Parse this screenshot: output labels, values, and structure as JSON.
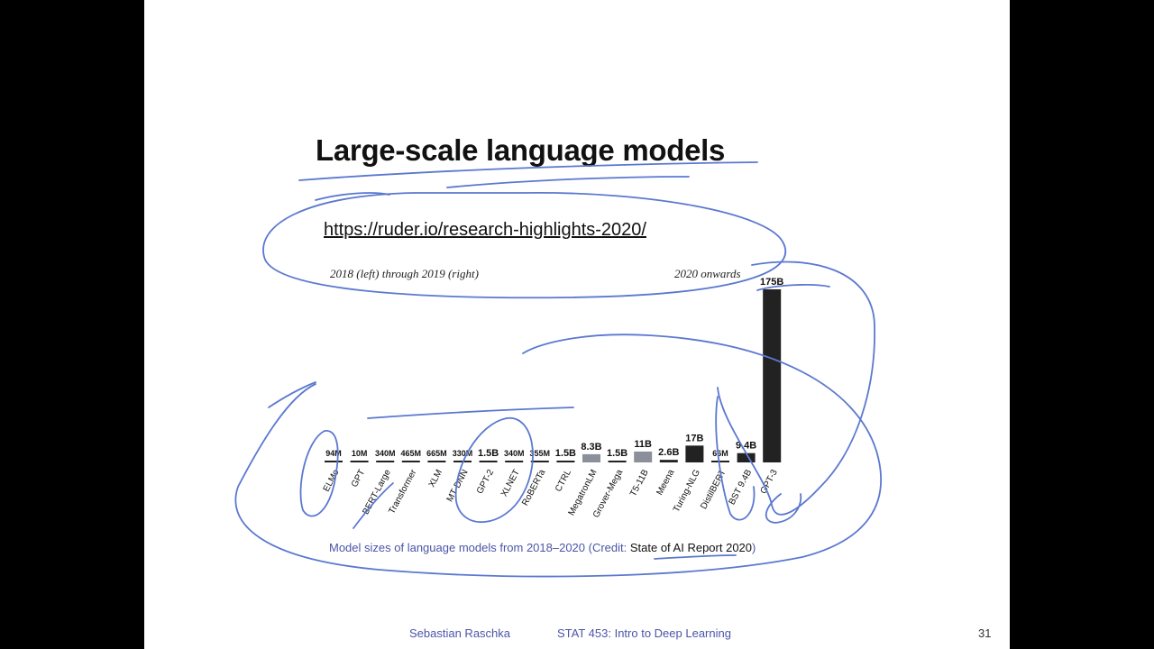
{
  "slide": {
    "title": "Large-scale language models",
    "link": "https://ruder.io/research-highlights-2020/",
    "note_left": "2018 (left) through 2019 (right)",
    "note_right": "2020 onwards",
    "caption_text": "Model sizes of language models from 2018–2020 (Credit: ",
    "caption_link": "State of AI Report 2020",
    "caption_end": ")",
    "footer_author": "Sebastian Raschka",
    "footer_course": "STAT 453: Intro to Deep Learning",
    "page_number": "31"
  },
  "colors": {
    "ink": "#5b78d0",
    "bar_dark": "#222222",
    "bar_gray": "#8a8f99",
    "text_blue": "#4a55a8"
  },
  "chart_data": {
    "type": "bar",
    "categories": [
      "ELMo",
      "GPT",
      "BERT-Large",
      "Transformer",
      "XLM",
      "MT-DNN",
      "GPT-2",
      "XLNET",
      "RoBERTa",
      "CTRL",
      "MegatronLM",
      "Grover-Mega",
      "T5-11B",
      "Meena",
      "Turing-NLG",
      "DistilBERT",
      "BST 9.4B",
      "GPT-3"
    ],
    "values_billions": [
      0.094,
      0.01,
      0.34,
      0.465,
      0.665,
      0.33,
      1.5,
      0.34,
      0.355,
      1.5,
      8.3,
      1.5,
      11,
      2.6,
      17,
      0.066,
      9.4,
      175
    ],
    "data_labels": [
      "94M",
      "10M",
      "340M",
      "465M",
      "665M",
      "330M",
      "1.5B",
      "340M",
      "355M",
      "1.5B",
      "8.3B",
      "1.5B",
      "11B",
      "2.6B",
      "17B",
      "66M",
      "9.4B",
      "175B"
    ],
    "era": [
      "2018-2019",
      "2018-2019",
      "2018-2019",
      "2018-2019",
      "2018-2019",
      "2018-2019",
      "2018-2019",
      "2018-2019",
      "2018-2019",
      "2018-2019",
      "2020+",
      "2020+",
      "2020+",
      "2020+",
      "2020+",
      "2020+",
      "2020+",
      "2020+"
    ],
    "bar_style": [
      "dark",
      "dark",
      "dark",
      "dark",
      "dark",
      "dark",
      "dark",
      "dark",
      "dark",
      "dark",
      "gray",
      "dark",
      "gray",
      "dark",
      "dark",
      "dark",
      "dark",
      "dark"
    ],
    "ylim": [
      0,
      175
    ],
    "grid": false,
    "legend": "none"
  }
}
